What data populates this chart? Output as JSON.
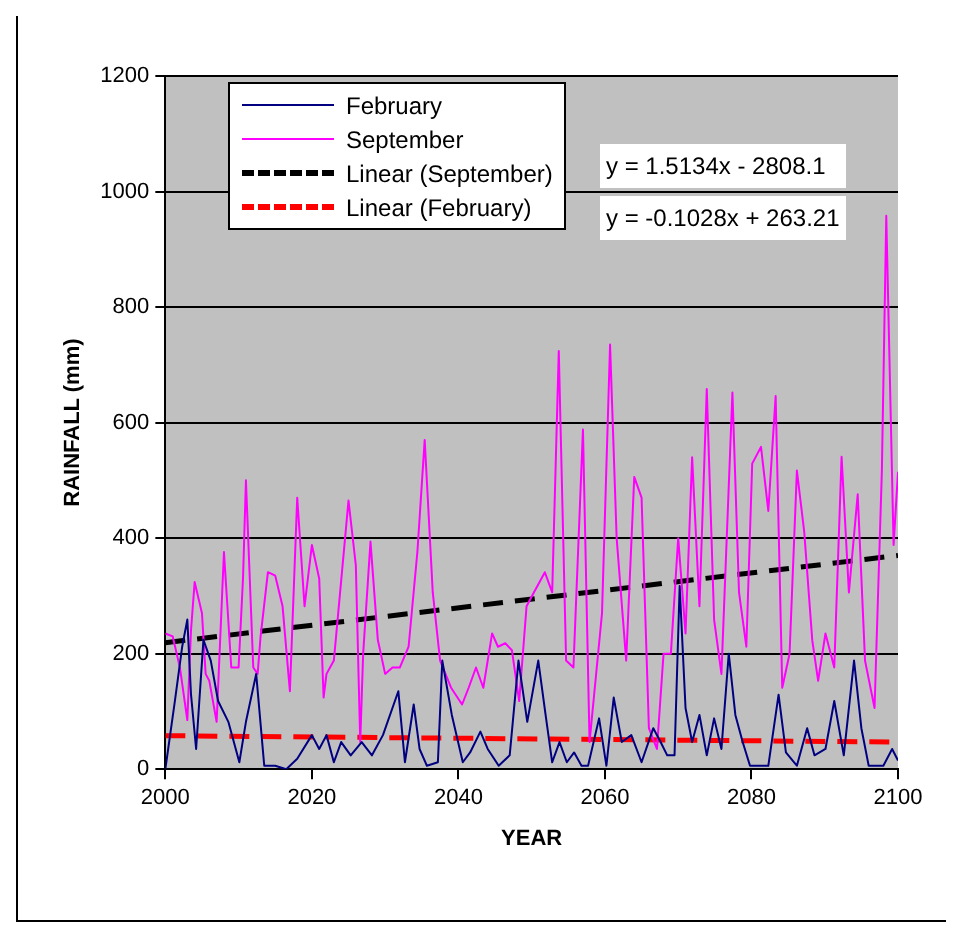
{
  "chart_data": {
    "type": "line",
    "xlabel": "YEAR",
    "ylabel": "RAINFALL (mm)",
    "xlim": [
      2000,
      2100
    ],
    "xticks": [
      2000,
      2020,
      2040,
      2060,
      2080,
      2100
    ],
    "ylim": [
      0,
      1200
    ],
    "yticks": [
      0,
      200,
      400,
      600,
      800,
      1000,
      1200
    ],
    "grid": "y",
    "legend": "top left",
    "marker": "none",
    "annotations": [
      "y = 1.5134x - 2808.1",
      "y = -0.1028x + 263.21"
    ],
    "series": [
      {
        "name": "February",
        "color": "#000080",
        "x": [
          2000,
          2001.3,
          2002.3,
          2003,
          2003.5,
          2004.2,
          2005.2,
          2006.2,
          2007.2,
          2008.6,
          2010.1,
          2011,
          2012.4,
          2013.5,
          2015,
          2016.5,
          2018,
          2020,
          2021,
          2022,
          2023,
          2024,
          2025.3,
          2026.8,
          2028.2,
          2029.7,
          2031.8,
          2032.7,
          2033.9,
          2034.7,
          2035.7,
          2037.2,
          2037.8,
          2039.1,
          2040.6,
          2041.6,
          2043,
          2044,
          2045.5,
          2047,
          2048.2,
          2049.4,
          2050.9,
          2051.9,
          2052.8,
          2053.8,
          2054.8,
          2055.8,
          2056.8,
          2057.7,
          2059.2,
          2060.2,
          2061.2,
          2062.3,
          2063.6,
          2065,
          2066.6,
          2067.6,
          2068.5,
          2069.5,
          2070.2,
          2071,
          2071.9,
          2072.9,
          2073.9,
          2074.9,
          2075.9,
          2076.9,
          2077.8,
          2078.8,
          2079.8,
          2082.3,
          2083.7,
          2084.7,
          2086.2,
          2087.6,
          2088.6,
          2090.1,
          2091.3,
          2092.6,
          2094,
          2095,
          2096,
          2098,
          2099.2,
          2100
        ],
        "values": [
          0,
          118,
          212,
          259,
          130,
          35,
          224,
          188,
          118,
          82,
          12,
          82,
          165,
          6,
          6,
          0,
          18,
          59,
          35,
          59,
          12,
          47,
          24,
          47,
          24,
          59,
          135,
          12,
          112,
          35,
          6,
          12,
          188,
          94,
          12,
          29,
          65,
          35,
          6,
          24,
          188,
          82,
          188,
          94,
          12,
          47,
          12,
          29,
          6,
          6,
          88,
          6,
          124,
          47,
          59,
          12,
          71,
          47,
          24,
          24,
          317,
          106,
          47,
          94,
          24,
          88,
          35,
          200,
          94,
          47,
          6,
          6,
          129,
          29,
          6,
          71,
          24,
          35,
          118,
          24,
          188,
          71,
          6,
          6,
          35,
          15
        ]
      },
      {
        "name": "September",
        "color": "#ff00ff",
        "x": [
          2000,
          2001,
          2002,
          2003,
          2003.5,
          2004,
          2005,
          2005.5,
          2006,
          2007,
          2008,
          2009,
          2010,
          2010.6,
          2011,
          2012,
          2012.6,
          2013,
          2014,
          2015,
          2016,
          2017,
          2018,
          2019,
          2020,
          2021,
          2021.6,
          2022,
          2023,
          2025,
          2026,
          2026.6,
          2027,
          2028,
          2029,
          2030,
          2031,
          2032,
          2033.2,
          2034.4,
          2035.4,
          2036.5,
          2037.5,
          2039,
          2040.5,
          2041.4,
          2042.4,
          2043.4,
          2044.6,
          2045.4,
          2046.4,
          2047.3,
          2048.3,
          2049.3,
          2050.3,
          2051.8,
          2052.8,
          2053.7,
          2054.7,
          2055.7,
          2057,
          2057.9,
          2059.6,
          2060.7,
          2061.6,
          2062.9,
          2064,
          2065,
          2066,
          2067.1,
          2068,
          2069,
          2070,
          2071,
          2071.9,
          2072.9,
          2073.9,
          2074.9,
          2075.9,
          2077.4,
          2078.3,
          2079.3,
          2080.1,
          2081.3,
          2082.3,
          2083.3,
          2084.2,
          2085.2,
          2086.2,
          2087.2,
          2088.3,
          2089.1,
          2090.1,
          2091.3,
          2092.3,
          2093.3,
          2094.5,
          2095.5,
          2096.8,
          2097.8,
          2098.4,
          2099.4,
          2100
        ],
        "values": [
          235,
          230,
          175,
          85,
          240,
          324,
          270,
          165,
          153,
          82,
          376,
          176,
          176,
          330,
          500,
          176,
          165,
          230,
          341,
          335,
          282,
          135,
          470,
          282,
          388,
          330,
          124,
          165,
          188,
          465,
          353,
          47,
          200,
          394,
          224,
          165,
          176,
          176,
          212,
          376,
          570,
          306,
          188,
          141,
          112,
          141,
          176,
          141,
          235,
          212,
          218,
          206,
          118,
          282,
          306,
          341,
          306,
          724,
          188,
          176,
          588,
          47,
          270,
          735,
          400,
          188,
          506,
          470,
          71,
          35,
          200,
          200,
          400,
          235,
          540,
          282,
          658,
          259,
          165,
          652,
          306,
          212,
          529,
          558,
          447,
          646,
          141,
          200,
          517,
          411,
          223,
          153,
          235,
          176,
          541,
          306,
          476,
          188,
          106,
          517,
          958,
          388,
          515
        ]
      },
      {
        "name": "Linear (September)",
        "color": "#000000",
        "line_style": "dashed",
        "x": [
          2000,
          2100
        ],
        "values": [
          219,
          370
        ]
      },
      {
        "name": "Linear (February)",
        "color": "#ff0000",
        "line_style": "dashed",
        "x": [
          2000,
          2100
        ],
        "values": [
          58,
          47
        ]
      }
    ]
  }
}
